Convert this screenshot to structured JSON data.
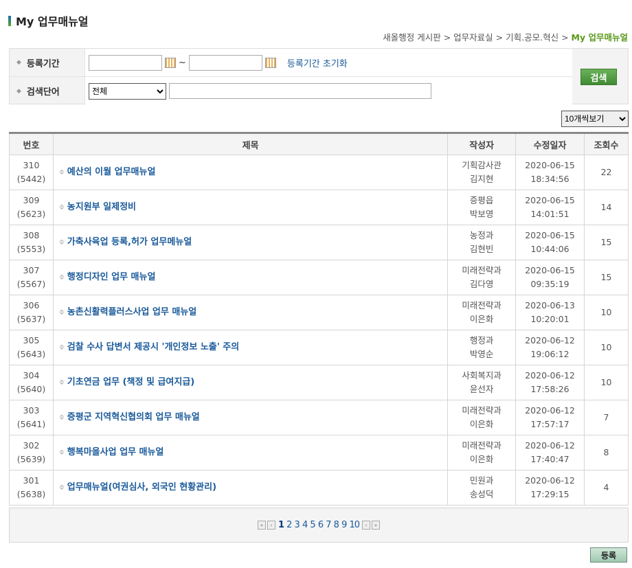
{
  "title": "My 업무매뉴얼",
  "breadcrumb": {
    "items": [
      "새올행정 게시판",
      "업무자료실",
      "기획.공모.혁신"
    ],
    "current": "My 업무매뉴얼",
    "sep": ">"
  },
  "search": {
    "period_label": "등록기간",
    "date_from": "",
    "date_to": "",
    "tilde": "~",
    "reset_link": "등록기간 초기화",
    "keyword_label": "검색단어",
    "scope_selected": "전체",
    "keyword_value": "",
    "button": "검색"
  },
  "per_page": "10개씩보기",
  "table": {
    "headers": [
      "번호",
      "제목",
      "작성자",
      "수정일자",
      "조회수"
    ],
    "rows": [
      {
        "no": "310",
        "id": "(5442)",
        "title": "예산의 이월 업무매뉴얼",
        "dept": "기획감사관",
        "author": "김지현",
        "date": "2020-06-15",
        "time": "18:34:56",
        "views": "22"
      },
      {
        "no": "309",
        "id": "(5623)",
        "title": "농지원부 일제정비",
        "dept": "증평읍",
        "author": "박보영",
        "date": "2020-06-15",
        "time": "14:01:51",
        "views": "14"
      },
      {
        "no": "308",
        "id": "(5553)",
        "title": "가축사육업 등록,허가 업무메뉴얼",
        "dept": "농정과",
        "author": "김현빈",
        "date": "2020-06-15",
        "time": "10:44:06",
        "views": "15"
      },
      {
        "no": "307",
        "id": "(5567)",
        "title": "행정디자인 업무 매뉴얼",
        "dept": "미래전략과",
        "author": "김다영",
        "date": "2020-06-15",
        "time": "09:35:19",
        "views": "15"
      },
      {
        "no": "306",
        "id": "(5637)",
        "title": "농촌신활력플러스사업 업무 매뉴얼",
        "dept": "미래전략과",
        "author": "이은화",
        "date": "2020-06-13",
        "time": "10:20:01",
        "views": "10"
      },
      {
        "no": "305",
        "id": "(5643)",
        "title": "검찰 수사 답변서 제공시 '개인정보 노출' 주의",
        "dept": "행정과",
        "author": "박영순",
        "date": "2020-06-12",
        "time": "19:06:12",
        "views": "10"
      },
      {
        "no": "304",
        "id": "(5640)",
        "title": "기초연금 업무 (책정 및 급여지급)",
        "dept": "사회복지과",
        "author": "윤선자",
        "date": "2020-06-12",
        "time": "17:58:26",
        "views": "10"
      },
      {
        "no": "303",
        "id": "(5641)",
        "title": "증평군 지역혁신협의회 업무 매뉴얼",
        "dept": "미래전략과",
        "author": "이은화",
        "date": "2020-06-12",
        "time": "17:57:17",
        "views": "7"
      },
      {
        "no": "302",
        "id": "(5639)",
        "title": "행복마을사업 업무 매뉴얼",
        "dept": "미래전략과",
        "author": "이은화",
        "date": "2020-06-12",
        "time": "17:40:47",
        "views": "8"
      },
      {
        "no": "301",
        "id": "(5638)",
        "title": "업무매뉴얼(여권심사, 외국인 현황관리)",
        "dept": "민원과",
        "author": "송성덕",
        "date": "2020-06-12",
        "time": "17:29:15",
        "views": "4"
      }
    ]
  },
  "pagination": {
    "pages": [
      "1",
      "2",
      "3",
      "4",
      "5",
      "6",
      "7",
      "8",
      "9",
      "10"
    ],
    "current": "1"
  },
  "register_button": "등록"
}
